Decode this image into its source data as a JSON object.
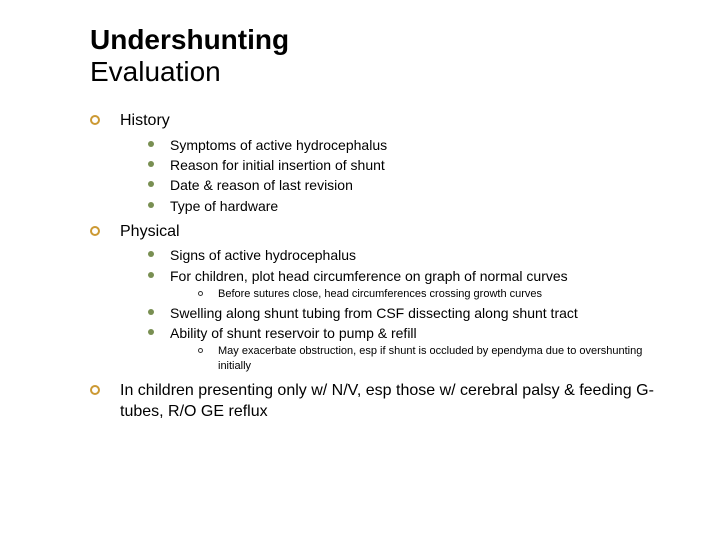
{
  "title": {
    "line1": "Undershunting",
    "line2": "Evaluation"
  },
  "colors": {
    "bullet_lvl1_border": "#cc9933",
    "bullet_lvl2_fill": "#798f52",
    "bullet_lvl3_border": "#333333",
    "text": "#000000",
    "background": "#ffffff"
  },
  "fonts": {
    "family": "Verdana",
    "title_size_pt": 28,
    "lvl1_size_pt": 16,
    "lvl2_size_pt": 14,
    "lvl3_size_pt": 11
  },
  "items": [
    {
      "label": "History",
      "children": [
        {
          "label": "Symptoms of active hydrocephalus"
        },
        {
          "label": "Reason for initial insertion of shunt"
        },
        {
          "label": "Date & reason of last revision"
        },
        {
          "label": "Type of hardware"
        }
      ]
    },
    {
      "label": "Physical",
      "children": [
        {
          "label": "Signs of active hydrocephalus"
        },
        {
          "label": "For children, plot head circumference on graph of normal curves",
          "children": [
            {
              "label": "Before sutures close, head circumferences crossing growth curves"
            }
          ]
        },
        {
          "label": "Swelling along shunt tubing from CSF dissecting along shunt tract"
        },
        {
          "label": "Ability of shunt reservoir to pump & refill",
          "children": [
            {
              "label": "May exacerbate obstruction, esp if shunt is occluded by ependyma due to overshunting initially"
            }
          ]
        }
      ]
    },
    {
      "label": "In children presenting only w/ N/V, esp those w/ cerebral palsy & feeding G-tubes, R/O GE reflux"
    }
  ]
}
